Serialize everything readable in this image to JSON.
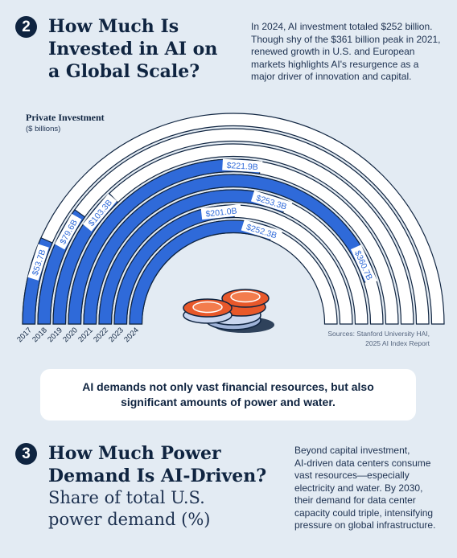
{
  "section2": {
    "number": "2",
    "title_lines": [
      "How Much Is",
      "Invested in AI on",
      "a Global Scale?"
    ],
    "intro_lines": [
      "In 2024, AI investment totaled $252 billion.",
      "Though shy of the $361 billion peak in 2021,",
      "renewed growth in U.S. and European",
      "markets highlights AI's resurgence as a",
      "major driver of innovation and capital."
    ]
  },
  "chart_data": {
    "type": "radial-bar",
    "title": "Private Investment",
    "subtitle": "($ billions)",
    "categories": [
      "2017",
      "2018",
      "2019",
      "2020",
      "2021",
      "2022",
      "2023",
      "2024"
    ],
    "values": [
      53.7,
      79.6,
      103.3,
      221.9,
      360.7,
      253.3,
      201.0,
      252.3
    ],
    "labels": [
      "$53.7B",
      "$79.6B",
      "$103.3B",
      "$221.9B",
      "$360.7B",
      "$253.3B",
      "$201.0B",
      "$252.3B"
    ],
    "max": 400,
    "colors": {
      "bar": "#2f6ad9",
      "track": "#ffffff",
      "outline": "#0f2440"
    },
    "source_lines": [
      "Sources: Stanford University HAI,",
      "2025 AI Index Report"
    ]
  },
  "callout": {
    "text_lines": [
      "AI demands not only vast financial resources, but also",
      "significant amounts of power and water."
    ]
  },
  "section3": {
    "number": "3",
    "title_lines": [
      "How Much Power",
      "Demand Is AI-Driven?"
    ],
    "subtitle_lines": [
      "Share of total U.S.",
      "power demand (%)"
    ],
    "intro_lines": [
      "Beyond capital investment,",
      "AI-driven data centers consume",
      "vast resources—especially",
      "electricity and water. By 2030,",
      "their demand for data center",
      "capacity could triple, intensifying",
      "pressure on global infrastructure."
    ]
  },
  "colors": {
    "navy": "#0f2440",
    "background": "#e3ebf3",
    "chip_orange": "#e8582a"
  }
}
